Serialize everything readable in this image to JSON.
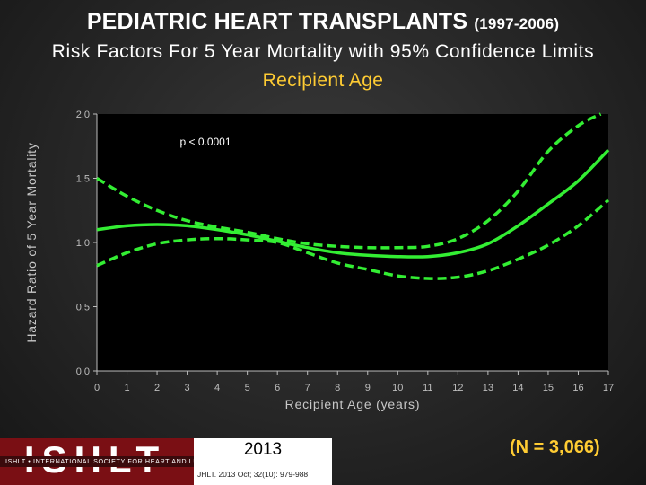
{
  "header": {
    "title_main": "PEDIATRIC HEART TRANSPLANTS",
    "title_years": "(1997-2006)",
    "subtitle": "Risk Factors For 5 Year Mortality with 95% Confidence Limits",
    "subtitle_variable": "Recipient Age"
  },
  "chart_data": {
    "type": "line",
    "title": "Recipient Age",
    "xlabel": "Recipient Age (years)",
    "ylabel": "Hazard Ratio of 5 Year Mortality",
    "xlim": [
      0,
      17
    ],
    "ylim": [
      0,
      2
    ],
    "x_ticks": [
      "0",
      "1",
      "2",
      "3",
      "4",
      "5",
      "6",
      "7",
      "8",
      "9",
      "10",
      "11",
      "12",
      "13",
      "14",
      "15",
      "16",
      "17"
    ],
    "y_ticks": [
      "0.0",
      "0.5",
      "1.0",
      "1.5",
      "2.0"
    ],
    "grid": false,
    "annotation": "p < 0.0001",
    "line_color": "#33ee33",
    "series": [
      {
        "role": "estimate",
        "style": "solid",
        "x": [
          0,
          1,
          2,
          3,
          4,
          5,
          6,
          7,
          8,
          9,
          10,
          11,
          12,
          13,
          14,
          15,
          16,
          17
        ],
        "y": [
          1.1,
          1.13,
          1.14,
          1.13,
          1.1,
          1.06,
          1.01,
          0.96,
          0.92,
          0.9,
          0.89,
          0.89,
          0.92,
          0.99,
          1.13,
          1.3,
          1.48,
          1.72
        ]
      },
      {
        "role": "upper_95",
        "style": "dashed",
        "x": [
          0,
          1,
          2,
          3,
          4,
          5,
          6,
          7,
          8,
          9,
          10,
          11,
          12,
          13,
          14,
          15,
          16,
          16.75
        ],
        "y": [
          1.5,
          1.36,
          1.25,
          1.17,
          1.12,
          1.08,
          1.03,
          0.99,
          0.97,
          0.96,
          0.96,
          0.97,
          1.03,
          1.17,
          1.4,
          1.71,
          1.91,
          2.0
        ]
      },
      {
        "role": "lower_95",
        "style": "dashed",
        "x": [
          0,
          1,
          2,
          3,
          4,
          5,
          6,
          7,
          8,
          9,
          10,
          11,
          12,
          13,
          14,
          15,
          16,
          17
        ],
        "y": [
          0.82,
          0.92,
          0.99,
          1.02,
          1.03,
          1.02,
          1.0,
          0.92,
          0.84,
          0.79,
          0.74,
          0.72,
          0.73,
          0.78,
          0.87,
          0.98,
          1.13,
          1.33
        ]
      }
    ]
  },
  "footer": {
    "logo_text": "ISHLT",
    "logo_strip": "ISHLT • INTERNATIONAL SOCIETY FOR HEART AND LUNG TRANSPLANTATION",
    "year": "2013",
    "citation": "JHLT. 2013 Oct; 32(10): 979-988",
    "n_note": "(N = 3,066)"
  }
}
